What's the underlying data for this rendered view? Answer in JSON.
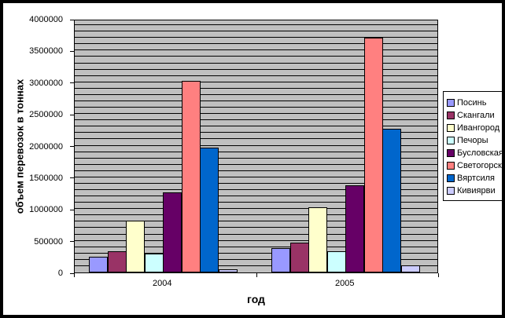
{
  "chart_data": {
    "type": "bar",
    "title": "",
    "xlabel": "год",
    "ylabel": "объем перевозок в тоннах",
    "categories": [
      "2004",
      "2005"
    ],
    "series": [
      {
        "name": "Посинь",
        "color": "#9999FF",
        "values": [
          250000,
          380000
        ]
      },
      {
        "name": "Скангали",
        "color": "#993366",
        "values": [
          330000,
          470000
        ]
      },
      {
        "name": "Ивангород",
        "color": "#FFFFCC",
        "values": [
          820000,
          1030000
        ]
      },
      {
        "name": "Печоры",
        "color": "#CCFFFF",
        "values": [
          300000,
          330000
        ]
      },
      {
        "name": "Бусловская",
        "color": "#660066",
        "values": [
          1260000,
          1370000
        ]
      },
      {
        "name": "Светогорск",
        "color": "#FF8080",
        "values": [
          3020000,
          3700000
        ]
      },
      {
        "name": "Вяртсиля",
        "color": "#0066CC",
        "values": [
          1970000,
          2270000
        ]
      },
      {
        "name": "Кивиярви",
        "color": "#CCCCFF",
        "values": [
          50000,
          110000
        ]
      }
    ],
    "ylim": [
      0,
      4000000
    ],
    "y_major_tick": 500000,
    "y_minor_gridline": 100000,
    "y_tick_labels": [
      "0",
      "500000",
      "1000000",
      "1500000",
      "2000000",
      "2500000",
      "3000000",
      "3500000",
      "4000000"
    ],
    "grid": "horizontal minor gridlines",
    "gridline_color": "#000000",
    "plot_background": "#C0C0C0",
    "legend_position": "right",
    "frame_color": "#000000"
  }
}
